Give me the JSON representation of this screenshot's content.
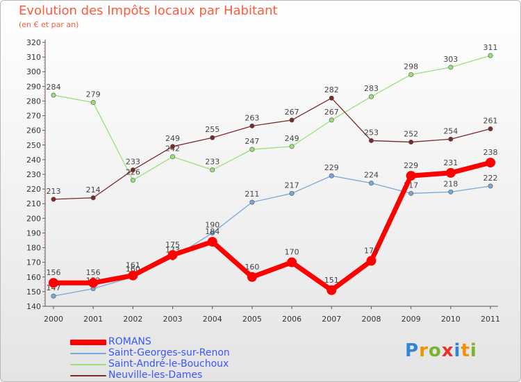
{
  "chart_data": {
    "type": "line",
    "title": "Evolution des Impôts locaux par Habitant",
    "subtitle": "(en € et par an)",
    "xlabel": "",
    "ylabel": "",
    "x": [
      "2000",
      "2001",
      "2002",
      "2003",
      "2004",
      "2005",
      "2006",
      "2007",
      "2008",
      "2009",
      "2010",
      "2011"
    ],
    "ylim": [
      140,
      320
    ],
    "yticks": [
      140,
      150,
      160,
      170,
      180,
      190,
      200,
      210,
      220,
      230,
      240,
      250,
      260,
      270,
      280,
      290,
      300,
      310,
      320
    ],
    "grid": false,
    "legend": "bottom-left",
    "series": [
      {
        "name": "ROMANS",
        "color": "#ff0000",
        "values": [
          156,
          156,
          161,
          175,
          184,
          160,
          170,
          151,
          171,
          229,
          231,
          238
        ]
      },
      {
        "name": "Saint-Georges-sur-Renon",
        "color": "#7aa7d6",
        "values": [
          147,
          152,
          160,
          173,
          190,
          211,
          217,
          229,
          224,
          217,
          218,
          222
        ]
      },
      {
        "name": "Saint-André-le-Bouchoux",
        "color": "#99e07a",
        "values": [
          284,
          279,
          226,
          242,
          233,
          247,
          249,
          267,
          283,
          298,
          303,
          311
        ]
      },
      {
        "name": "Neuville-les-Dames",
        "color": "#7a2a2a",
        "values": [
          213,
          214,
          233,
          249,
          255,
          263,
          267,
          282,
          253,
          252,
          254,
          261
        ]
      }
    ]
  },
  "logo": {
    "letters": [
      "P",
      "r",
      "o",
      "x",
      "i",
      "t",
      "i"
    ]
  }
}
